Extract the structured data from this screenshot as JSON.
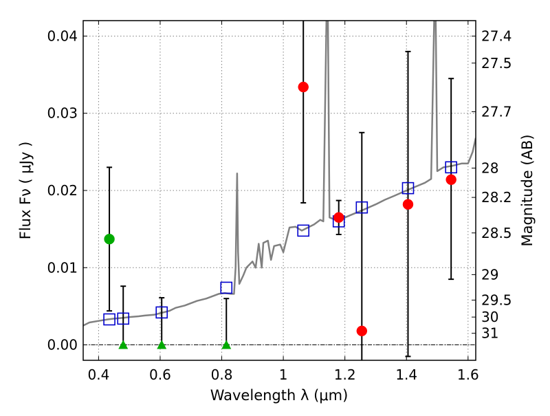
{
  "chart_data": {
    "type": "scatter",
    "title": "",
    "xlabel": "Wavelength  λ (μm)",
    "ylabel": "Flux  Fν  ( μJy )",
    "ylabel_right": "Magnitude (AB)",
    "xlim": [
      0.35,
      1.625
    ],
    "ylim": [
      -0.002,
      0.042
    ],
    "x_ticks": [
      0.4,
      0.6,
      0.8,
      1.0,
      1.2,
      1.4,
      1.6
    ],
    "x_tick_labels": [
      "0.4",
      "0.6",
      "0.8",
      "1",
      "1.2",
      "1.4",
      "1.6"
    ],
    "y_ticks": [
      0.0,
      0.01,
      0.02,
      0.03,
      0.04
    ],
    "y_tick_labels": [
      "0.00",
      "0.01",
      "0.02",
      "0.03",
      "0.04"
    ],
    "right_ticks": [
      {
        "label": "27.4",
        "flux": 0.04
      },
      {
        "label": "27.5",
        "flux": 0.0365
      },
      {
        "label": "27.7",
        "flux": 0.0302
      },
      {
        "label": "28",
        "flux": 0.0229
      },
      {
        "label": "28.2",
        "flux": 0.0191
      },
      {
        "label": "28.5",
        "flux": 0.0145
      },
      {
        "label": "29",
        "flux": 0.0091
      },
      {
        "label": "29.5",
        "flux": 0.0058
      },
      {
        "label": "30",
        "flux": 0.0036
      },
      {
        "label": "31",
        "flux": 0.0015
      }
    ],
    "grid": true,
    "zero_line": true,
    "series": [
      {
        "name": "Model SED",
        "kind": "line",
        "color": "#808080",
        "points": [
          [
            0.35,
            0.0025
          ],
          [
            0.37,
            0.0029
          ],
          [
            0.4,
            0.0031
          ],
          [
            0.43,
            0.0033
          ],
          [
            0.45,
            0.0034
          ],
          [
            0.48,
            0.0035
          ],
          [
            0.5,
            0.0036
          ],
          [
            0.53,
            0.0037
          ],
          [
            0.55,
            0.0038
          ],
          [
            0.58,
            0.0039
          ],
          [
            0.6,
            0.0041
          ],
          [
            0.63,
            0.0044
          ],
          [
            0.65,
            0.0048
          ],
          [
            0.68,
            0.0051
          ],
          [
            0.7,
            0.0054
          ],
          [
            0.72,
            0.0057
          ],
          [
            0.75,
            0.006
          ],
          [
            0.77,
            0.0063
          ],
          [
            0.79,
            0.0066
          ],
          [
            0.81,
            0.0067
          ],
          [
            0.83,
            0.0066
          ],
          [
            0.84,
            0.0066
          ],
          [
            0.845,
            0.01
          ],
          [
            0.85,
            0.0222
          ],
          [
            0.853,
            0.012
          ],
          [
            0.857,
            0.0079
          ],
          [
            0.87,
            0.009
          ],
          [
            0.88,
            0.01
          ],
          [
            0.9,
            0.0108
          ],
          [
            0.91,
            0.01
          ],
          [
            0.92,
            0.0131
          ],
          [
            0.93,
            0.01
          ],
          [
            0.935,
            0.0132
          ],
          [
            0.95,
            0.0135
          ],
          [
            0.96,
            0.011
          ],
          [
            0.97,
            0.0128
          ],
          [
            0.99,
            0.013
          ],
          [
            1.0,
            0.012
          ],
          [
            1.02,
            0.0152
          ],
          [
            1.04,
            0.0153
          ],
          [
            1.06,
            0.0148
          ],
          [
            1.08,
            0.0152
          ],
          [
            1.1,
            0.0156
          ],
          [
            1.12,
            0.0162
          ],
          [
            1.13,
            0.016
          ],
          [
            1.14,
            0.042
          ],
          [
            1.145,
            0.042
          ],
          [
            1.15,
            0.0165
          ],
          [
            1.17,
            0.0162
          ],
          [
            1.2,
            0.0165
          ],
          [
            1.23,
            0.017
          ],
          [
            1.26,
            0.0175
          ],
          [
            1.3,
            0.0182
          ],
          [
            1.33,
            0.0188
          ],
          [
            1.36,
            0.0193
          ],
          [
            1.4,
            0.02
          ],
          [
            1.43,
            0.0205
          ],
          [
            1.46,
            0.021
          ],
          [
            1.48,
            0.0215
          ],
          [
            1.49,
            0.042
          ],
          [
            1.495,
            0.042
          ],
          [
            1.5,
            0.0225
          ],
          [
            1.52,
            0.023
          ],
          [
            1.55,
            0.0232
          ],
          [
            1.58,
            0.0235
          ],
          [
            1.6,
            0.0235
          ],
          [
            1.615,
            0.025
          ],
          [
            1.625,
            0.0268
          ]
        ]
      },
      {
        "name": "Model photometry",
        "kind": "open_square",
        "color": "#0000cc",
        "x": [
          0.435,
          0.48,
          0.605,
          0.815,
          1.065,
          1.18,
          1.255,
          1.405,
          1.545
        ],
        "y": [
          0.0033,
          0.0034,
          0.0042,
          0.0074,
          0.0148,
          0.016,
          0.0178,
          0.0203,
          0.023
        ]
      },
      {
        "name": "Observed detections",
        "kind": "circle",
        "color": "#ff0000",
        "x": [
          1.065,
          1.18,
          1.255,
          1.405,
          1.545
        ],
        "y": [
          0.0334,
          0.0165,
          0.0018,
          0.0182,
          0.0214
        ],
        "err_low": [
          0.015,
          0.0022,
          0.004,
          0.0197,
          0.0129
        ],
        "err_high": [
          0.015,
          0.0022,
          0.0257,
          0.0198,
          0.0131
        ]
      },
      {
        "name": "Green detection",
        "kind": "circle",
        "color": "#00aa00",
        "x": [
          0.435
        ],
        "y": [
          0.0137
        ],
        "err_low": [
          0.0093
        ],
        "err_high": [
          0.0093
        ]
      },
      {
        "name": "Non-detections (upper limits)",
        "kind": "triangle",
        "color": "#00aa00",
        "x": [
          0.48,
          0.605,
          0.815
        ],
        "y": [
          0.0,
          0.0,
          0.0
        ],
        "err_high": [
          0.0076,
          0.0061,
          0.006
        ]
      }
    ]
  }
}
